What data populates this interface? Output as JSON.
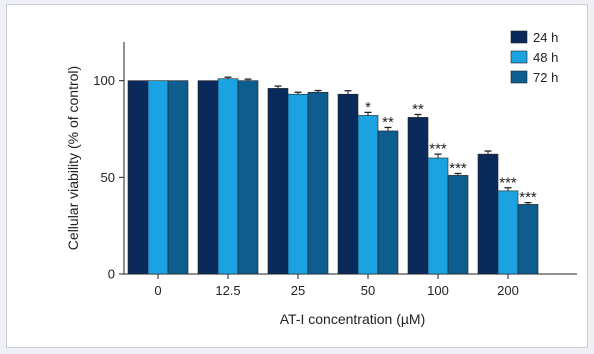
{
  "chart_data": {
    "type": "bar",
    "title": "",
    "xlabel": "AT-I concentration (µM)",
    "ylabel": "Cellular viability (% of control)",
    "ylim": [
      0,
      120
    ],
    "yticks": [
      0,
      50,
      100
    ],
    "categories": [
      "0",
      "12.5",
      "25",
      "50",
      "100",
      "200"
    ],
    "series": [
      {
        "name": "24 h",
        "color": "#0b2a5c",
        "values": [
          100,
          100,
          96,
          93,
          81,
          62
        ],
        "errors": [
          0,
          0,
          1.2,
          1.8,
          1.5,
          1.6
        ],
        "significance": [
          "",
          "",
          "",
          "",
          "**",
          ""
        ]
      },
      {
        "name": "48 h",
        "color": "#1aa3e0",
        "values": [
          100,
          101,
          93,
          82,
          60,
          43
        ],
        "errors": [
          0,
          0.8,
          1.0,
          1.6,
          2.0,
          1.6
        ],
        "significance": [
          "",
          "",
          "",
          "*",
          "***",
          "***"
        ]
      },
      {
        "name": "72 h",
        "color": "#0d5d8f",
        "values": [
          100,
          100,
          94,
          74,
          51,
          36
        ],
        "errors": [
          0,
          0.8,
          0.9,
          1.8,
          1.0,
          0.9
        ],
        "significance": [
          "",
          "",
          "",
          "**",
          "***",
          "***"
        ]
      }
    ],
    "legend_position": "top-right",
    "grid": false,
    "error_bars": true
  }
}
